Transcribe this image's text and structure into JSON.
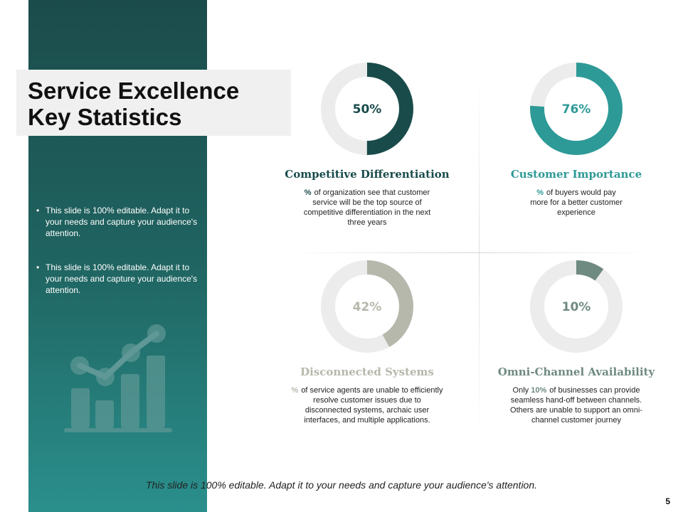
{
  "title": {
    "line1": "Service Excellence",
    "line2": "Key Statistics"
  },
  "bullets": [
    "This slide is 100% editable. Adapt it to your needs and capture your audience's attention.",
    "This slide is 100% editable. Adapt it to your needs and capture your audience's attention."
  ],
  "stats": [
    {
      "value_label": "50%",
      "value": 50,
      "color": "#1a4b4b",
      "title": "Competitive Differentiation",
      "desc_prefix": "",
      "desc_pct": "%",
      "desc_text": "of organization see that customer service will be the top source of competitive differentiation in the next three years"
    },
    {
      "value_label": "76%",
      "value": 76,
      "color": "#2e9a97",
      "title": "Customer Importance",
      "desc_prefix": "",
      "desc_pct": "%",
      "desc_text": "of buyers would pay more for a better customer experience"
    },
    {
      "value_label": "42%",
      "value": 42,
      "color": "#b7b8ac",
      "title": "Disconnected Systems",
      "desc_prefix": "",
      "desc_pct": "%",
      "desc_text": "of service agents are unable to efficiently resolve customer issues due to disconnected systems, archaic user interfaces, and multiple applications."
    },
    {
      "value_label": "10%",
      "value": 10,
      "color": "#6f8a80",
      "title": "Omni-Channel Availability",
      "desc_prefix": "Only",
      "desc_pct": "10%",
      "desc_text": "of businesses can provide seamless hand-off between channels. Others are unable to support an omni-channel customer journey"
    }
  ],
  "footer": "This slide is 100% editable. Adapt it to your needs and capture your audience's attention.",
  "page_number": "5",
  "colors": {
    "track": "#ececec",
    "panel_dark": "#1b4c4b",
    "panel_light": "#2a8f8c"
  }
}
